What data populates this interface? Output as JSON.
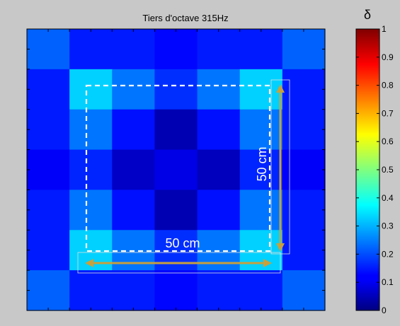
{
  "chart_data": {
    "type": "heatmap",
    "title": "Tiers d'octave 315Hz",
    "colorbar": {
      "label": "δ",
      "range": [
        0,
        1
      ],
      "ticks": [
        "0",
        "0.1",
        "0.2",
        "0.3",
        "0.4",
        "0.5",
        "0.6",
        "0.7",
        "0.8",
        "0.9",
        "1"
      ],
      "colormap": "jet"
    },
    "grid_size": [
      7,
      7
    ],
    "values": [
      [
        0.22,
        0.15,
        0.15,
        0.13,
        0.15,
        0.15,
        0.22
      ],
      [
        0.15,
        0.33,
        0.24,
        0.17,
        0.24,
        0.33,
        0.15
      ],
      [
        0.15,
        0.24,
        0.14,
        0.05,
        0.14,
        0.24,
        0.15
      ],
      [
        0.12,
        0.16,
        0.07,
        0.1,
        0.06,
        0.16,
        0.12
      ],
      [
        0.15,
        0.24,
        0.14,
        0.05,
        0.14,
        0.24,
        0.15
      ],
      [
        0.15,
        0.33,
        0.24,
        0.17,
        0.24,
        0.33,
        0.15
      ],
      [
        0.22,
        0.15,
        0.15,
        0.13,
        0.15,
        0.15,
        0.22
      ]
    ],
    "annotations": {
      "horizontal_dimension": "50 cm",
      "vertical_dimension": "50 cm",
      "arrow_color": "#c8a03c",
      "square_outline": "dashed white"
    },
    "grid": false
  }
}
